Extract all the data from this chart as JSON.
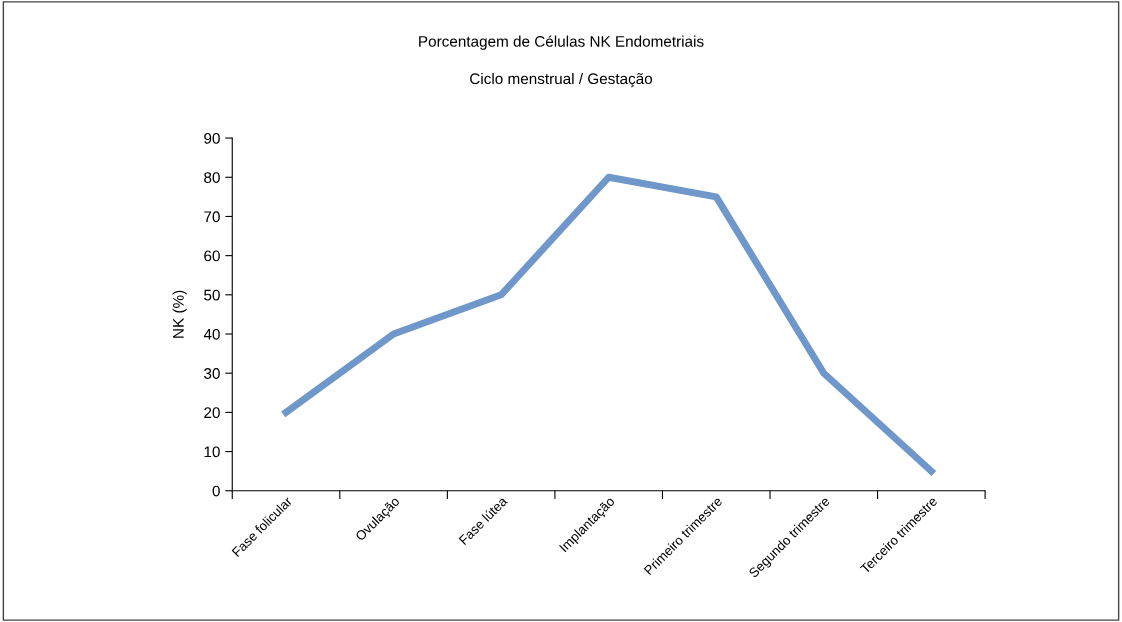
{
  "chart_data": {
    "type": "line",
    "title": "Porcentagem de Células NK Endometriais",
    "subtitle": "Ciclo menstrual / Gestação",
    "ylabel": "NK (%)",
    "categories": [
      "Fase folicular",
      "Ovulação",
      "Fase lútea",
      "Implantação",
      "Primeiro trimestre",
      "Segundo trimestre",
      "Terceiro trimestre"
    ],
    "series": [
      {
        "color": "#6f97c9",
        "values": [
          20,
          40,
          50,
          80,
          75,
          30,
          5
        ]
      }
    ],
    "ylim": [
      0,
      90
    ],
    "yticks": [
      0,
      10,
      20,
      30,
      40,
      50,
      60,
      70,
      80,
      90
    ],
    "grid": false,
    "legend": false,
    "marker": "none",
    "line_style": "solid"
  }
}
